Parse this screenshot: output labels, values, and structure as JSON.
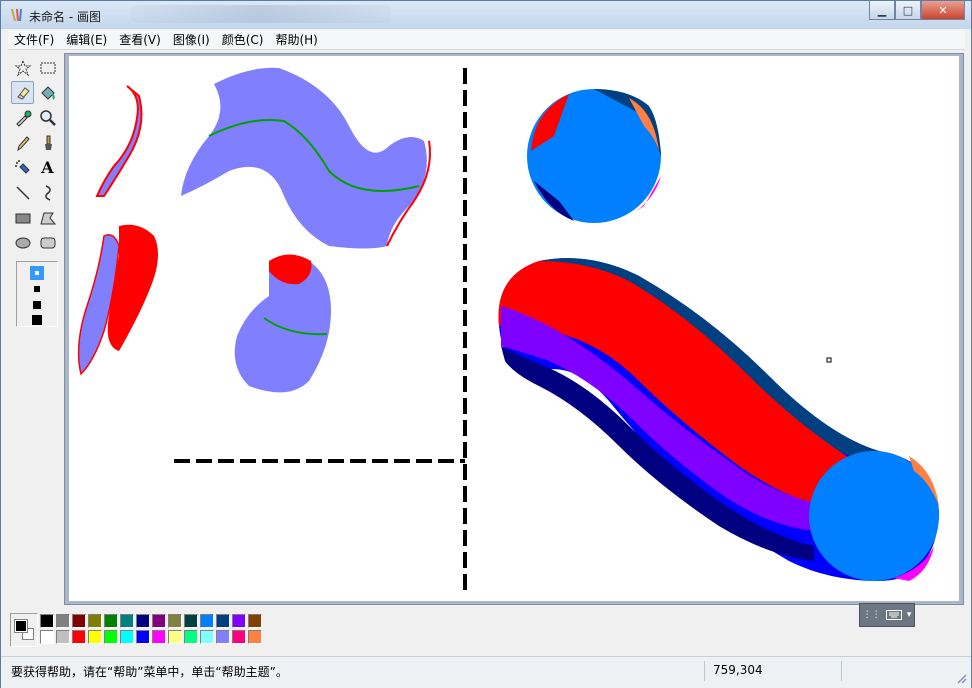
{
  "window": {
    "title": "未命名 - 画图",
    "minimize_glyph": "▁",
    "maximize_glyph": "□",
    "close_glyph": "✕"
  },
  "menu": [
    {
      "label": "文件(F)"
    },
    {
      "label": "编辑(E)"
    },
    {
      "label": "查看(V)"
    },
    {
      "label": "图像(I)"
    },
    {
      "label": "颜色(C)"
    },
    {
      "label": "帮助(H)"
    }
  ],
  "tools": [
    {
      "name": "free-select-tool",
      "icon": "star-select-icon"
    },
    {
      "name": "rect-select-tool",
      "icon": "rect-select-icon"
    },
    {
      "name": "eraser-tool",
      "icon": "eraser-icon",
      "selected": true
    },
    {
      "name": "fill-tool",
      "icon": "paint-bucket-icon"
    },
    {
      "name": "color-picker-tool",
      "icon": "eyedropper-icon"
    },
    {
      "name": "magnifier-tool",
      "icon": "magnifier-icon"
    },
    {
      "name": "pencil-tool",
      "icon": "pencil-icon"
    },
    {
      "name": "brush-tool",
      "icon": "brush-icon"
    },
    {
      "name": "airbrush-tool",
      "icon": "airbrush-icon"
    },
    {
      "name": "text-tool",
      "icon": "text-icon",
      "glyph": "A"
    },
    {
      "name": "line-tool",
      "icon": "line-icon"
    },
    {
      "name": "curve-tool",
      "icon": "curve-icon"
    },
    {
      "name": "rectangle-tool",
      "icon": "rectangle-icon"
    },
    {
      "name": "polygon-tool",
      "icon": "polygon-icon"
    },
    {
      "name": "ellipse-tool",
      "icon": "ellipse-icon"
    },
    {
      "name": "rounded-rect-tool",
      "icon": "rounded-rect-icon"
    }
  ],
  "colors": {
    "foreground": "#000000",
    "background": "#ffffff",
    "palette_row1": [
      "#000000",
      "#808080",
      "#800000",
      "#808000",
      "#008000",
      "#008080",
      "#000080",
      "#800080",
      "#808040",
      "#004040",
      "#0080ff",
      "#004080",
      "#8000ff",
      "#804000"
    ],
    "palette_row2": [
      "#ffffff",
      "#c0c0c0",
      "#ff0000",
      "#ffff00",
      "#00ff00",
      "#00ffff",
      "#0000ff",
      "#ff00ff",
      "#ffff80",
      "#00ff80",
      "#80ffff",
      "#8080ff",
      "#ff0080",
      "#ff8040"
    ]
  },
  "status": {
    "help_text": "要获得帮助，请在“帮助”菜单中，单击“帮助主题”。",
    "coords": "759,304"
  }
}
